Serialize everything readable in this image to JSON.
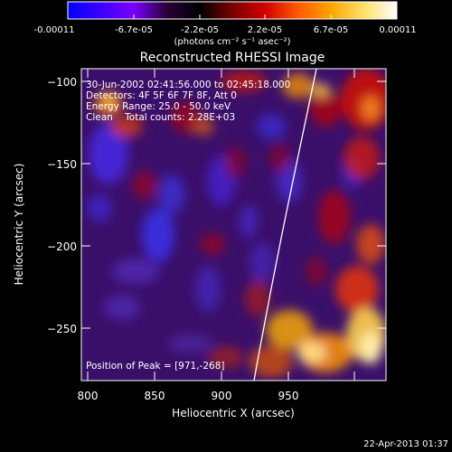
{
  "colorbar": {
    "tick_labels": [
      "-0.00011",
      "-6.7e-05",
      "-2.2e-05",
      "2.2e-05",
      "6.7e-05",
      "0.00011"
    ],
    "unit_label": "(photons cm⁻² s⁻¹ asec⁻²)",
    "stops": [
      "#0000ff",
      "#3b00ff",
      "#7a00ff",
      "#2a003a",
      "#000000",
      "#7a0000",
      "#d10000",
      "#ff5a00",
      "#ffa600",
      "#ffe06a",
      "#ffffff"
    ]
  },
  "plot": {
    "title": "Reconstructed RHESSI Image",
    "x_axis_label": "Heliocentric X (arcsec)",
    "y_axis_label": "Heliocentric Y (arcsec)",
    "x_ticks": [
      "800",
      "850",
      "900",
      "950"
    ],
    "y_ticks": [
      "−100",
      "−150",
      "−200",
      "−250"
    ],
    "info_lines": [
      "30-Jun-2002 02:41:56.000 to 02:45:18.000",
      "Detectors: 4F 5F 6F 7F 8F, Att 0",
      "Energy Range: 25.0 - 50.0 keV",
      "Clean    Total counts: 2.28E+03"
    ],
    "peak_label": "Position of Peak = [971,-268]",
    "limb_color": "#ffffff"
  },
  "footer": {
    "timestamp": "22-Apr-2013 01:37"
  }
}
